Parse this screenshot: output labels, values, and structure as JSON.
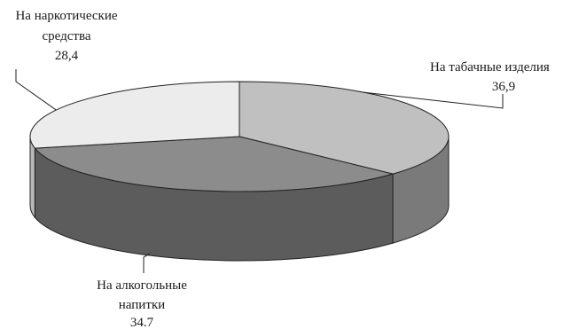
{
  "chart_data": {
    "type": "pie",
    "style": "3d",
    "title": "",
    "categories": [
      "На табачные изделия",
      "На алкогольные напитки",
      "На наркотические средства"
    ],
    "values": [
      "36,9",
      "34.7",
      "28,4"
    ],
    "numeric_values": [
      36.9,
      34.7,
      28.4
    ],
    "colors": {
      "top": [
        "#c0c0c0",
        "#8c8c8c",
        "#ececec"
      ],
      "side": [
        "#7a7a7a",
        "#5c5c5c",
        "#b8b8b8"
      ]
    },
    "label_lines": [
      [
        "На табачные изделия"
      ],
      [
        "На алкогольные",
        "напитки"
      ],
      [
        "На наркотические",
        "средства"
      ]
    ]
  }
}
